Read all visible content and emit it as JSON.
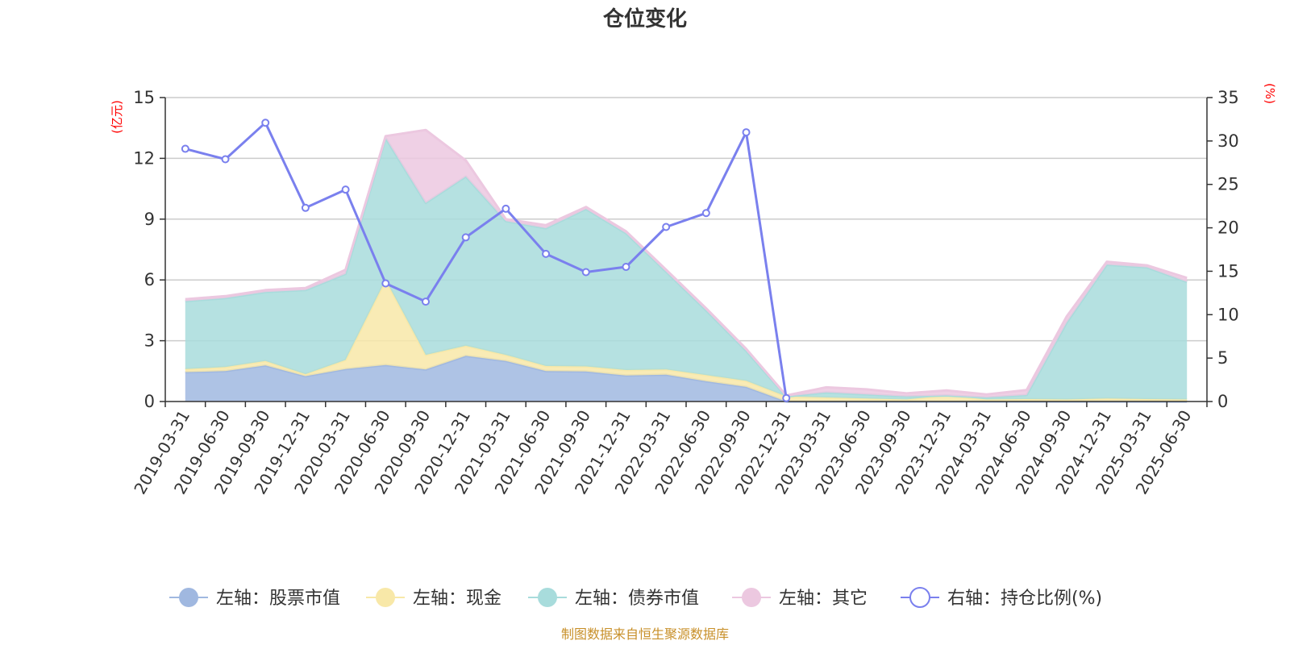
{
  "chart_data": {
    "type": "area",
    "title": "仓位变化",
    "source": "制图数据来自恒生聚源数据库",
    "left_axis": {
      "unit": "(亿元)",
      "ylim": [
        0,
        15
      ],
      "ticks": [
        "0",
        "3",
        "6",
        "9",
        "12",
        "15"
      ]
    },
    "right_axis": {
      "unit": "(%)",
      "ylim": [
        0,
        35
      ],
      "ticks": [
        "0",
        "5",
        "10",
        "15",
        "20",
        "25",
        "30",
        "35"
      ]
    },
    "categories": [
      "2019-03-31",
      "2019-06-30",
      "2019-09-30",
      "2019-12-31",
      "2020-03-31",
      "2020-06-30",
      "2020-09-30",
      "2020-12-31",
      "2021-03-31",
      "2021-06-30",
      "2021-09-30",
      "2021-12-31",
      "2022-03-31",
      "2022-06-30",
      "2022-09-30",
      "2022-12-31",
      "2023-03-31",
      "2023-06-30",
      "2023-09-30",
      "2023-12-31",
      "2024-03-31",
      "2024-06-30",
      "2024-09-30",
      "2024-12-31",
      "2025-03-31",
      "2025-06-30"
    ],
    "series": [
      {
        "name": "左轴：股票市值",
        "axis": "left",
        "kind": "stack-area",
        "color": "#a0b8e0",
        "values": [
          1.45,
          1.5,
          1.78,
          1.25,
          1.6,
          1.8,
          1.58,
          2.25,
          2.0,
          1.5,
          1.48,
          1.28,
          1.32,
          1.0,
          0.72,
          0.0,
          0.0,
          0.0,
          0.0,
          0.0,
          0.0,
          0.0,
          0.0,
          0.0,
          0.0,
          0.0
        ]
      },
      {
        "name": "左轴：现金",
        "axis": "left",
        "kind": "stack-area",
        "color": "#f8e8a8",
        "values": [
          0.15,
          0.2,
          0.22,
          0.1,
          0.45,
          4.2,
          0.72,
          0.5,
          0.3,
          0.25,
          0.25,
          0.27,
          0.26,
          0.3,
          0.3,
          0.25,
          0.2,
          0.15,
          0.1,
          0.3,
          0.1,
          0.12,
          0.1,
          0.15,
          0.12,
          0.1
        ]
      },
      {
        "name": "左轴：债券市值",
        "axis": "left",
        "kind": "stack-area",
        "color": "#a8dcdc",
        "values": [
          3.35,
          3.4,
          3.4,
          4.15,
          4.25,
          7.0,
          7.5,
          8.35,
          6.6,
          6.8,
          7.77,
          6.75,
          4.82,
          3.2,
          1.48,
          0.0,
          0.25,
          0.2,
          0.15,
          0.0,
          0.1,
          0.2,
          3.8,
          6.6,
          6.5,
          5.8
        ]
      },
      {
        "name": "左轴：其它",
        "axis": "left",
        "kind": "stack-area",
        "color": "#ecc8e0",
        "values": [
          0.1,
          0.1,
          0.1,
          0.1,
          0.2,
          0.1,
          3.6,
          0.8,
          0.1,
          0.15,
          0.1,
          0.1,
          0.1,
          0.1,
          0.1,
          0.05,
          0.25,
          0.25,
          0.15,
          0.25,
          0.15,
          0.25,
          0.3,
          0.15,
          0.1,
          0.2
        ]
      },
      {
        "name": "右轴：持仓比例(%)",
        "axis": "right",
        "kind": "line",
        "color": "#7a80ee",
        "values": [
          29.1,
          27.9,
          32.1,
          22.3,
          24.4,
          13.6,
          11.5,
          18.9,
          22.2,
          17.0,
          14.9,
          15.5,
          20.1,
          21.7,
          31.0,
          0.4,
          null,
          null,
          null,
          null,
          null,
          null,
          null,
          null,
          null,
          null
        ]
      }
    ],
    "colors": {
      "stock": "#a0b8e0",
      "cash": "#f8e8a8",
      "bond": "#a8dcdc",
      "other": "#ecc8e0",
      "ratio": "#7a80ee",
      "unit": "#ff0000",
      "source": "#c8902a"
    },
    "legend_placement": "bottom",
    "grid": true
  }
}
